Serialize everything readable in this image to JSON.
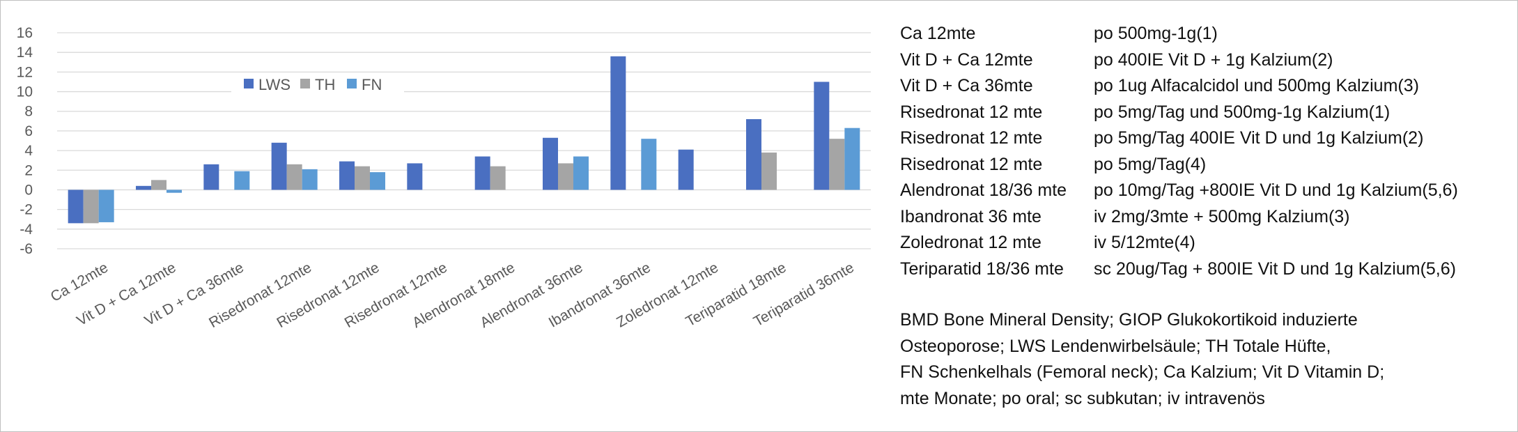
{
  "chart_data": {
    "type": "bar",
    "categories": [
      "Ca 12mte",
      "Vit D + Ca 12mte",
      "Vit D + Ca 36mte",
      "Risedronat 12mte",
      "Risedronat 12mte",
      "Risedronat 12mte",
      "Alendronat 18mte",
      "Alendronat 36mte",
      "Ibandronat 36mte",
      "Zoledronat 12mte",
      "Teriparatid 18mte",
      "Teriparatid 36mte"
    ],
    "series": [
      {
        "name": "LWS",
        "color": "#4a6fc1",
        "values": [
          -3.4,
          0.4,
          2.6,
          4.8,
          2.9,
          2.7,
          3.4,
          5.3,
          13.6,
          4.1,
          7.2,
          11.0
        ]
      },
      {
        "name": "TH",
        "color": "#a5a5a5",
        "values": [
          -3.4,
          1.0,
          null,
          2.6,
          2.4,
          null,
          2.4,
          2.7,
          null,
          null,
          3.8,
          5.2
        ]
      },
      {
        "name": "FN",
        "color": "#5b9bd5",
        "values": [
          -3.3,
          -0.3,
          1.9,
          2.1,
          1.8,
          null,
          null,
          3.4,
          5.2,
          null,
          null,
          6.3
        ]
      }
    ],
    "ylim": [
      -6,
      16
    ],
    "yticks": [
      16,
      14,
      12,
      10,
      8,
      6,
      4,
      2,
      0,
      -2,
      -4,
      -6
    ],
    "grid": true,
    "legend": "top-left inside plot"
  },
  "regimens": [
    {
      "name": "Ca 12mte",
      "dose": "po 500mg-1g(1)"
    },
    {
      "name": "Vit D + Ca 12mte",
      "dose": "po 400IE Vit D + 1g Kalzium(2)"
    },
    {
      "name": "Vit D + Ca 36mte",
      "dose": "po 1ug Alfacalcidol und 500mg Kalzium(3)"
    },
    {
      "name": "Risedronat 12 mte",
      "dose": "po 5mg/Tag und 500mg-1g Kalzium(1)"
    },
    {
      "name": "Risedronat 12 mte",
      "dose": "po 5mg/Tag 400IE Vit D und 1g Kalzium(2)"
    },
    {
      "name": "Risedronat 12 mte",
      "dose": "po 5mg/Tag(4)"
    },
    {
      "name": "Alendronat 18/36 mte",
      "dose": "po 10mg/Tag +800IE Vit D und 1g Kalzium(5,6)"
    },
    {
      "name": "Ibandronat 36 mte",
      "dose": "iv 2mg/3mte + 500mg Kalzium(3)"
    },
    {
      "name": "Zoledronat 12 mte",
      "dose": "iv 5/12mte(4)"
    },
    {
      "name": "Teriparatid 18/36 mte",
      "dose": "sc 20ug/Tag + 800IE Vit D und 1g Kalzium(5,6)"
    }
  ],
  "abbreviations": {
    "line1": "BMD Bone Mineral Density; GIOP Glukokortikoid induzierte",
    "line2": "Osteoporose; LWS Lendenwirbelsäule; TH Totale Hüfte,",
    "line3": "FN Schenkelhals (Femoral neck); Ca Kalzium; Vit D Vitamin D;",
    "line4": "mte Monate; po oral; sc subkutan; iv intravenös"
  }
}
